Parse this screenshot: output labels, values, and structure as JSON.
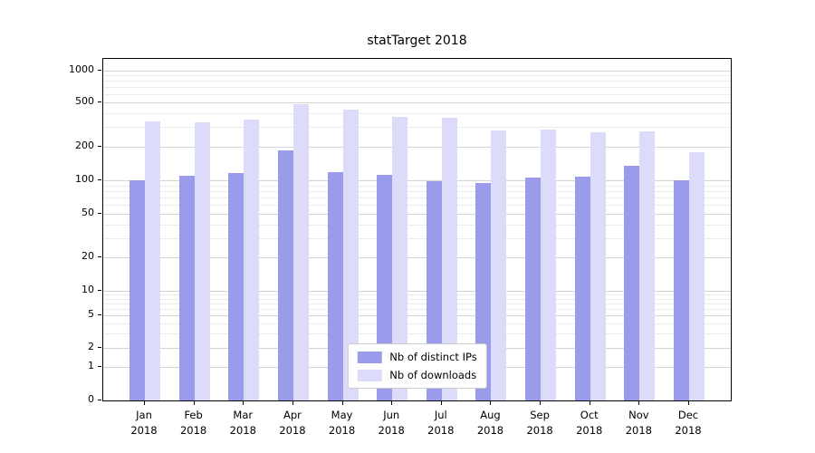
{
  "title": "statTarget 2018",
  "legend": {
    "items": [
      {
        "label": "Nb of distinct IPs",
        "color": "#9b9bec"
      },
      {
        "label": "Nb of downloads",
        "color": "#dcdcfa"
      }
    ]
  },
  "chart_data": {
    "type": "bar",
    "title": "statTarget 2018",
    "categories": [
      "Jan 2018",
      "Feb 2018",
      "Mar 2018",
      "Apr 2018",
      "May 2018",
      "Jun 2018",
      "Jul 2018",
      "Aug 2018",
      "Sep 2018",
      "Oct 2018",
      "Nov 2018",
      "Dec 2018"
    ],
    "series": [
      {
        "name": "Nb of distinct IPs",
        "color": "#9b9bec",
        "values": [
          100,
          110,
          117,
          185,
          118,
          112,
          99,
          95,
          105,
          108,
          135,
          100
        ]
      },
      {
        "name": "Nb of downloads",
        "color": "#dcdcfa",
        "values": [
          340,
          330,
          350,
          480,
          430,
          370,
          365,
          280,
          285,
          270,
          275,
          180
        ]
      }
    ],
    "xlabel": "",
    "ylabel": "",
    "yticks": [
      0,
      1,
      2,
      5,
      10,
      20,
      50,
      100,
      200,
      500,
      1000
    ],
    "y_scale": "log-like with zero baseline",
    "ylim": [
      0,
      1000
    ],
    "grid": true,
    "legend_position": "lower center"
  }
}
